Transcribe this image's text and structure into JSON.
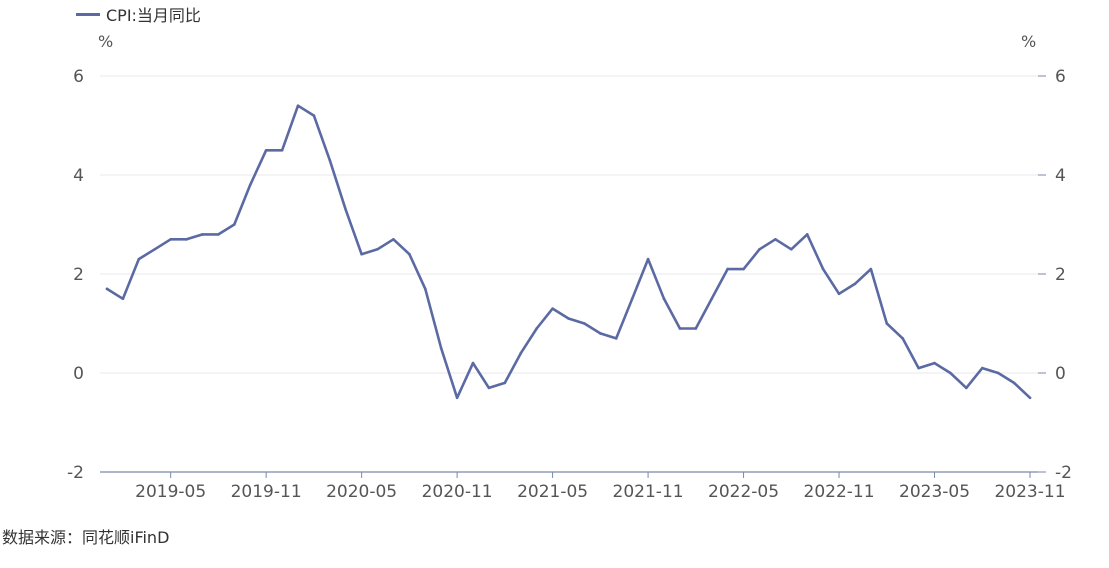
{
  "legend": {
    "label": "CPI:当月同比",
    "color": "#5b6aa3"
  },
  "source": "数据来源：同花顺iFinD",
  "chart_data": {
    "type": "line",
    "left_unit": "%",
    "right_unit": "%",
    "ylim": [
      -2,
      6
    ],
    "yticks": [
      6,
      4,
      2,
      0,
      -2
    ],
    "xtick_labels": [
      "2019-05",
      "2019-11",
      "2020-05",
      "2020-11",
      "2021-05",
      "2021-11",
      "2022-05",
      "2022-11",
      "2023-05",
      "2023-11"
    ],
    "grid": true,
    "series": [
      {
        "name": "CPI:当月同比",
        "color": "#5b6aa3",
        "x": [
          "2019-01",
          "2019-02",
          "2019-03",
          "2019-04",
          "2019-05",
          "2019-06",
          "2019-07",
          "2019-08",
          "2019-09",
          "2019-10",
          "2019-11",
          "2019-12",
          "2020-01",
          "2020-02",
          "2020-03",
          "2020-04",
          "2020-05",
          "2020-06",
          "2020-07",
          "2020-08",
          "2020-09",
          "2020-10",
          "2020-11",
          "2020-12",
          "2021-01",
          "2021-02",
          "2021-03",
          "2021-04",
          "2021-05",
          "2021-06",
          "2021-07",
          "2021-08",
          "2021-09",
          "2021-10",
          "2021-11",
          "2021-12",
          "2022-01",
          "2022-02",
          "2022-03",
          "2022-04",
          "2022-05",
          "2022-06",
          "2022-07",
          "2022-08",
          "2022-09",
          "2022-10",
          "2022-11",
          "2022-12",
          "2023-01",
          "2023-02",
          "2023-03",
          "2023-04",
          "2023-05",
          "2023-06",
          "2023-07",
          "2023-08",
          "2023-09",
          "2023-10",
          "2023-11"
        ],
        "values": [
          1.7,
          1.5,
          2.3,
          2.5,
          2.7,
          2.7,
          2.8,
          2.8,
          3.0,
          3.8,
          4.5,
          4.5,
          5.4,
          5.2,
          4.3,
          3.3,
          2.4,
          2.5,
          2.7,
          2.4,
          1.7,
          0.5,
          -0.5,
          0.2,
          -0.3,
          -0.2,
          0.4,
          0.9,
          1.3,
          1.1,
          1.0,
          0.8,
          0.7,
          1.5,
          2.3,
          1.5,
          0.9,
          0.9,
          1.5,
          2.1,
          2.1,
          2.5,
          2.7,
          2.5,
          2.8,
          2.1,
          1.6,
          1.8,
          2.1,
          1.0,
          0.7,
          0.1,
          0.2,
          0.0,
          -0.3,
          0.1,
          0.0,
          -0.2,
          -0.5
        ]
      }
    ]
  }
}
